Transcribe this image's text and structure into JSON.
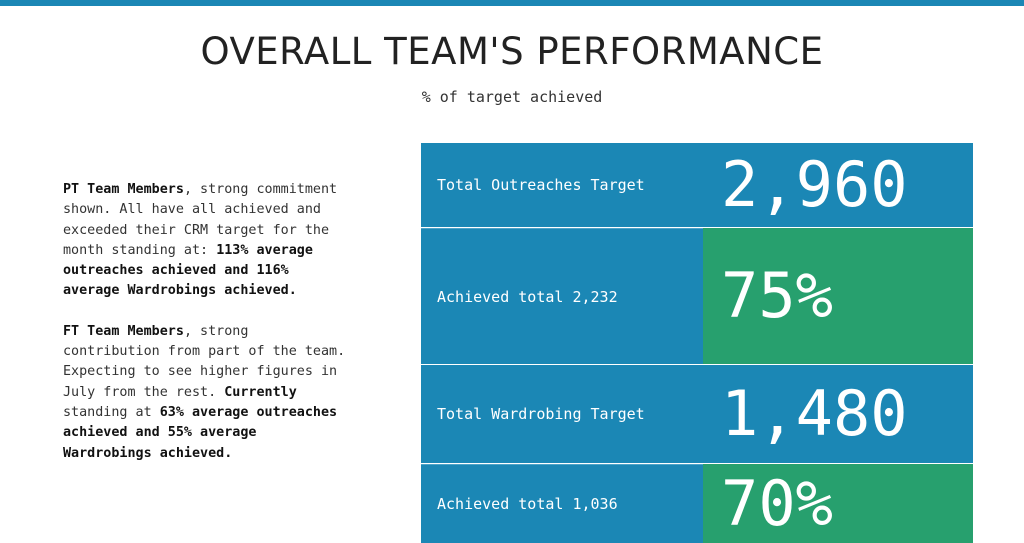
{
  "header": {
    "title": "OVERALL TEAM'S PERFORMANCE",
    "subtitle": "% of target achieved",
    "accent_color": "#1b87b5"
  },
  "summary": {
    "pt": {
      "lead": "PT Team Members",
      "text1": ", strong commitment shown. All have all achieved and exceeded their CRM target for the month standing at: ",
      "highlight": "113% average outreaches achieved and 116% average Wardrobings achieved."
    },
    "ft": {
      "lead": "FT Team Members",
      "text1": ", strong contribution from part of the team. Expecting to see higher figures in July from the rest. ",
      "lead2": "Currently",
      "text2": " standing at ",
      "highlight": "63% average outreaches achieved and 55% average Wardrobings achieved."
    }
  },
  "stats": [
    {
      "label": "Total Outreaches Target",
      "value": "2,960",
      "color": "#1b87b5"
    },
    {
      "label": "Achieved total 2,232",
      "value": "75%",
      "color": "#27a06e"
    },
    {
      "label": "Total Wardrobing Target",
      "value": "1,480",
      "color": "#1b87b5"
    },
    {
      "label": "Achieved total 1,036",
      "value": "70%",
      "color": "#27a06e"
    }
  ]
}
